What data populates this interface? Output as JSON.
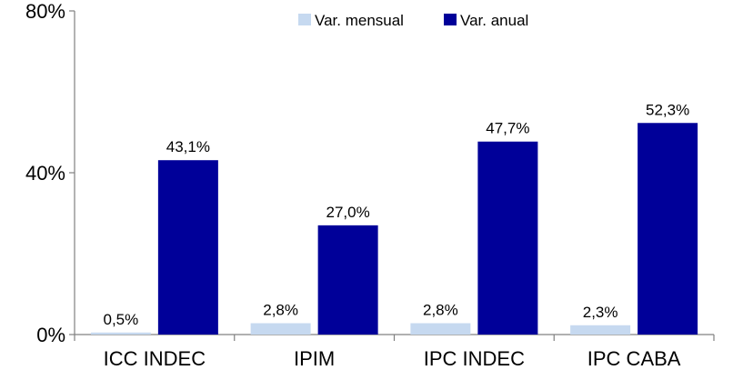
{
  "chart_data": {
    "type": "bar",
    "categories": [
      "ICC INDEC",
      "IPIM",
      "IPC INDEC",
      "IPC CABA"
    ],
    "series": [
      {
        "name": "Var. mensual",
        "values": [
          0.5,
          2.8,
          2.8,
          2.3
        ],
        "labels": [
          "0,5%",
          "2,8%",
          "2,8%",
          "2,3%"
        ],
        "color": "#c6d9f0"
      },
      {
        "name": "Var. anual",
        "values": [
          43.1,
          27.0,
          47.7,
          52.3
        ],
        "labels": [
          "43,1%",
          "27,0%",
          "47,7%",
          "52,3%"
        ],
        "color": "#000099"
      }
    ],
    "ylim": [
      0,
      80
    ],
    "yticks": [
      0,
      40,
      80
    ],
    "ytick_labels": [
      "0%",
      "40%",
      "80%"
    ],
    "grid": false,
    "legend_position": "top-center",
    "title": "",
    "xlabel": "",
    "ylabel": ""
  }
}
